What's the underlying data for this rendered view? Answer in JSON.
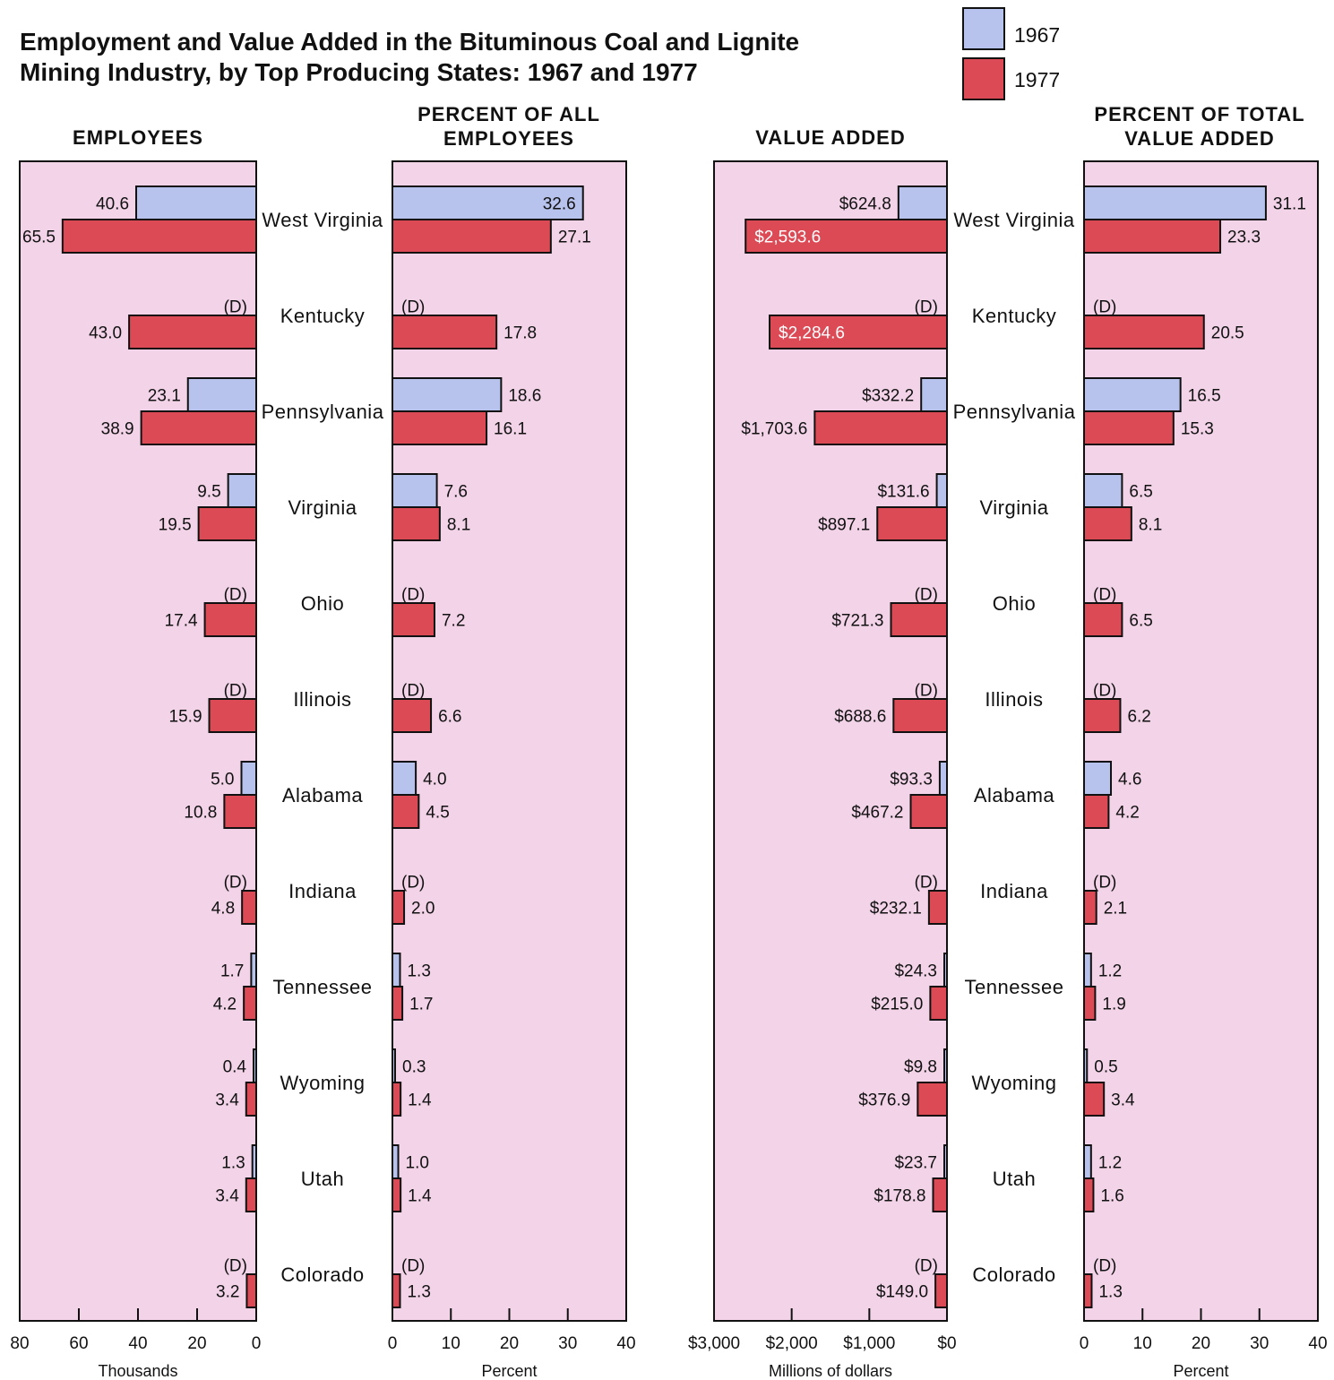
{
  "title_lines": [
    "Employment and Value Added in the Bituminous Coal and Lignite",
    "Mining Industry, by Top Producing States: 1967 and 1977"
  ],
  "legend": [
    {
      "label": "1967",
      "color": "#b7c3ec"
    },
    {
      "label": "1977",
      "color": "#dc4a55"
    }
  ],
  "colors": {
    "panel_bg": "#f2d3e8",
    "bar_1967": "#b7c3ec",
    "bar_1977": "#dc4a55",
    "border": "#111111"
  },
  "panel_titles": {
    "employees": [
      "EMPLOYEES"
    ],
    "pct_employees": [
      "PERCENT OF ALL",
      "EMPLOYEES"
    ],
    "value_added": [
      "VALUE ADDED"
    ],
    "pct_value": [
      "PERCENT OF TOTAL",
      "VALUE ADDED"
    ]
  },
  "chart_data": {
    "type": "bar",
    "categories": [
      "West Virginia",
      "Kentucky",
      "Pennsylvania",
      "Virginia",
      "Ohio",
      "Illinois",
      "Alabama",
      "Indiana",
      "Tennessee",
      "Wyoming",
      "Utah",
      "Colorado"
    ],
    "series_names": [
      "1967",
      "1977"
    ],
    "panels": [
      {
        "id": "employees",
        "xlabel": "Thousands",
        "xlim": [
          0,
          80
        ],
        "direction": "reversed",
        "ticks": [
          80,
          60,
          40,
          20,
          0
        ],
        "tick_labels": [
          "80",
          "60",
          "40",
          "20",
          "0"
        ],
        "values_1967": [
          40.6,
          null,
          23.1,
          9.5,
          null,
          null,
          5.0,
          null,
          1.7,
          0.4,
          1.3,
          null
        ],
        "values_1977": [
          65.5,
          43.0,
          38.9,
          19.5,
          17.4,
          15.9,
          10.8,
          4.8,
          4.2,
          3.4,
          3.4,
          3.2
        ],
        "labels_1967": [
          "40.6",
          "(D)",
          "23.1",
          "9.5",
          "(D)",
          "(D)",
          "5.0",
          "(D)",
          "1.7",
          "0.4",
          "1.3",
          "(D)"
        ],
        "labels_1977": [
          "65.5",
          "43.0",
          "38.9",
          "19.5",
          "17.4",
          "15.9",
          "10.8",
          "4.8",
          "4.2",
          "3.4",
          "3.4",
          "3.2"
        ]
      },
      {
        "id": "pct_employees",
        "xlabel": "Percent",
        "xlim": [
          0,
          40
        ],
        "direction": "normal",
        "ticks": [
          0,
          10,
          20,
          30,
          40
        ],
        "tick_labels": [
          "0",
          "10",
          "20",
          "30",
          "40"
        ],
        "values_1967": [
          32.6,
          null,
          18.6,
          7.6,
          null,
          null,
          4.0,
          null,
          1.3,
          0.3,
          1.0,
          null
        ],
        "values_1977": [
          27.1,
          17.8,
          16.1,
          8.1,
          7.2,
          6.6,
          4.5,
          2.0,
          1.7,
          1.4,
          1.4,
          1.3
        ],
        "labels_1967": [
          "32.6",
          "(D)",
          "18.6",
          "7.6",
          "(D)",
          "(D)",
          "4.0",
          "(D)",
          "1.3",
          "0.3",
          "1.0",
          "(D)"
        ],
        "labels_1977": [
          "27.1",
          "17.8",
          "16.1",
          "8.1",
          "7.2",
          "6.6",
          "4.5",
          "2.0",
          "1.7",
          "1.4",
          "1.4",
          "1.3"
        ]
      },
      {
        "id": "value_added",
        "xlabel": "Millions of dollars",
        "xlim": [
          0,
          3000
        ],
        "direction": "reversed",
        "ticks": [
          3000,
          2000,
          1000,
          0
        ],
        "tick_labels": [
          "$3,000",
          "$2,000",
          "$1,000",
          "$0"
        ],
        "values_1967": [
          624.8,
          null,
          332.2,
          131.6,
          null,
          null,
          93.3,
          null,
          24.3,
          9.8,
          23.7,
          null
        ],
        "values_1977": [
          2593.6,
          2284.6,
          1703.6,
          897.1,
          721.3,
          688.6,
          467.2,
          232.1,
          215.0,
          376.9,
          178.8,
          149.0
        ],
        "labels_1967": [
          "$624.8",
          "(D)",
          "$332.2",
          "$131.6",
          "(D)",
          "(D)",
          "$93.3",
          "(D)",
          "$24.3",
          "$9.8",
          "$23.7",
          "(D)"
        ],
        "labels_1977": [
          "$2,593.6",
          "$2,284.6",
          "$1,703.6",
          "$897.1",
          "$721.3",
          "$688.6",
          "$467.2",
          "$232.1",
          "$215.0",
          "$376.9",
          "$178.8",
          "$149.0"
        ]
      },
      {
        "id": "pct_value",
        "xlabel": "Percent",
        "xlim": [
          0,
          40
        ],
        "direction": "normal",
        "ticks": [
          0,
          10,
          20,
          30,
          40
        ],
        "tick_labels": [
          "0",
          "10",
          "20",
          "30",
          "40"
        ],
        "values_1967": [
          31.1,
          null,
          16.5,
          6.5,
          null,
          null,
          4.6,
          null,
          1.2,
          0.5,
          1.2,
          null
        ],
        "values_1977": [
          23.3,
          20.5,
          15.3,
          8.1,
          6.5,
          6.2,
          4.2,
          2.1,
          1.9,
          3.4,
          1.6,
          1.3
        ],
        "labels_1967": [
          "31.1",
          "(D)",
          "16.5",
          "6.5",
          "(D)",
          "(D)",
          "4.6",
          "(D)",
          "1.2",
          "0.5",
          "1.2",
          "(D)"
        ],
        "labels_1977": [
          "23.3",
          "20.5",
          "15.3",
          "8.1",
          "6.5",
          "6.2",
          "4.2",
          "2.1",
          "1.9",
          "3.4",
          "1.6",
          "1.3"
        ]
      }
    ]
  }
}
